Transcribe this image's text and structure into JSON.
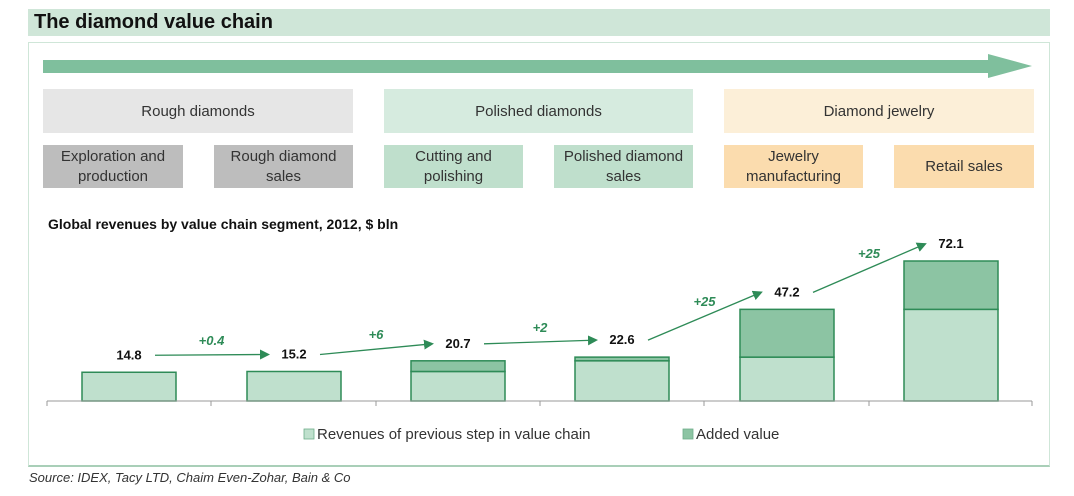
{
  "header": {
    "title": "The diamond value chain"
  },
  "stages": {
    "groups": [
      {
        "label": "Rough diamonds",
        "color": "#e6e6e6"
      },
      {
        "label": "Polished diamonds",
        "color": "#d6ebdf"
      },
      {
        "label": "Diamond jewelry",
        "color": "#fcefd8"
      }
    ],
    "segments": [
      {
        "label": "Exploration and production",
        "color": "#bdbdbd"
      },
      {
        "label": "Rough diamond sales",
        "color": "#bdbdbd"
      },
      {
        "label": "Cutting and polishing",
        "color": "#bfdfcc"
      },
      {
        "label": "Polished diamond sales",
        "color": "#bfdfcc"
      },
      {
        "label": "Jewelry manufacturing",
        "color": "#fbdcae"
      },
      {
        "label": "Retail sales",
        "color": "#fbdcae"
      }
    ]
  },
  "chart_data": {
    "type": "bar",
    "title": "Global revenues by value chain segment, 2012, $ bln",
    "categories": [
      "Exploration and production",
      "Rough diamond sales",
      "Cutting and polishing",
      "Polished diamond sales",
      "Jewelry manufacturing",
      "Retail sales"
    ],
    "stacked": true,
    "series": [
      {
        "name": "Revenues of previous step in value chain",
        "values": [
          14.8,
          15.2,
          15.2,
          20.7,
          22.6,
          47.2
        ],
        "color": "#bfe0cd"
      },
      {
        "name": "Added value",
        "values": [
          0,
          0,
          5.5,
          1.9,
          24.6,
          24.9
        ],
        "color": "#8cc4a3"
      }
    ],
    "totals": [
      14.8,
      15.2,
      20.7,
      22.6,
      47.2,
      72.1
    ],
    "total_labels": [
      "14.8",
      "15.2",
      "20.7",
      "22.6",
      "47.2",
      "72.1"
    ],
    "increments": [
      "+0.4",
      "+6",
      "+2",
      "+25",
      "+25"
    ],
    "legend_position": "bottom",
    "grid": false,
    "ylim": [
      0,
      72.1
    ],
    "accent_color": "#2e8b57"
  },
  "source": {
    "text": "Source: IDEX, Tacy LTD, Chaim Even-Zohar, Bain & Co"
  }
}
